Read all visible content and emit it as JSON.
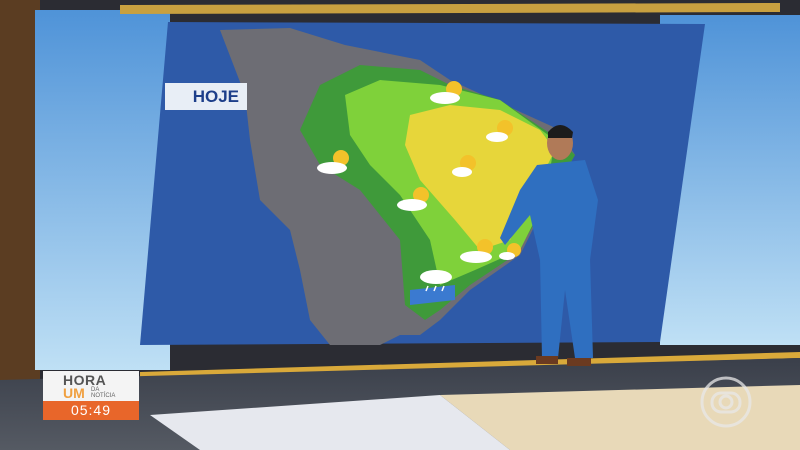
{
  "broadcast": {
    "map_label": "HOJE",
    "program_logo": {
      "line1": "HORA",
      "line2": "UM",
      "line3": "DA",
      "line4": "NOTÍCIA"
    },
    "clock": "05:49"
  },
  "weather_icons": [
    "sun-cloud-icon",
    "sun-cloud-icon",
    "sun-cloud-icon",
    "sun-cloud-icon",
    "sun-cloud-icon",
    "sun-cloud-icon",
    "sun-cloud-icon",
    "rain-cloud-icon"
  ],
  "colors": {
    "screen_bg": "#2e5aa8",
    "land": "#6d6d74",
    "green_dark": "#3f9a3a",
    "green_light": "#7fd13a",
    "yellow": "#e7d63a",
    "logo_orange": "#e8662a"
  }
}
